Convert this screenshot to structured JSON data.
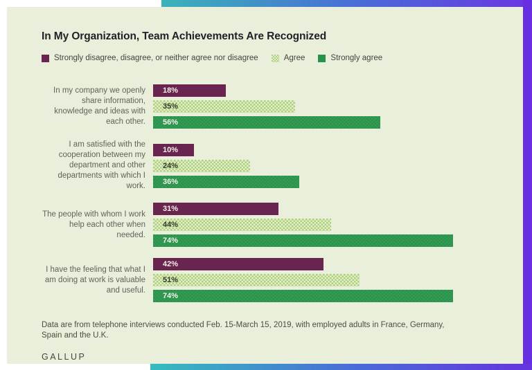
{
  "page": {
    "title": "In My Organization, Team Achievements Are Recognized",
    "footnote": "Data are from telephone interviews conducted Feb. 15-March 15, 2019, with employed adults in France, Germany, Spain and the U.K.",
    "brand": "GALLUP"
  },
  "colors": {
    "card_background": "#e9efda",
    "disagree_bar": "#692550",
    "agree_bar": "#aecf7f",
    "strongly_agree_bar": "#28924a",
    "accent_gradient": [
      "#3ab3b8",
      "#4a6ad8",
      "#6b35e2"
    ],
    "right_edge_strip": "#6630e2"
  },
  "chart_data": {
    "type": "bar",
    "orientation": "horizontal",
    "unit": "%",
    "title": "In My Organization, Team Achievements Are Recognized",
    "categories": [
      "In my company we openly share information, knowledge and ideas with each other.",
      "I am satisfied with the cooperation between my department and other departments with which I work.",
      "The people with whom I work help each other when needed.",
      "I have the feeling that what I am doing at work is valuable and useful."
    ],
    "series": [
      {
        "name": "Strongly disagree, disagree, or neither agree nor disagree",
        "color": "#692550",
        "values": [
          18,
          10,
          31,
          42
        ]
      },
      {
        "name": "Agree",
        "color": "#aecf7f",
        "values": [
          35,
          24,
          44,
          51
        ]
      },
      {
        "name": "Strongly agree",
        "color": "#28924a",
        "values": [
          56,
          36,
          74,
          74
        ]
      }
    ],
    "value_labels": true,
    "xlim": [
      0,
      100
    ],
    "grid": false,
    "legend_position": "top"
  }
}
